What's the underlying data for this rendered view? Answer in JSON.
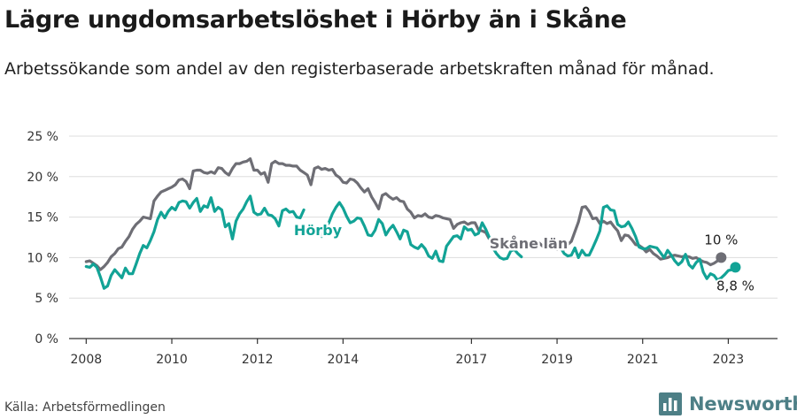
{
  "title": "Lägre ungdomsarbetslöshet i Hörby än i Skåne",
  "subtitle": "Arbetssökande som andel av den registerbaserade arbetskraften månad för månad.",
  "source": "Källa: Arbetsförmedlingen",
  "brand": "Newsworthy",
  "brand_icon": "newsworthy-logo-icon",
  "colors": {
    "horby": "#12a396",
    "skane": "#6e6e75",
    "grid": "#dddddd",
    "axis": "#333333",
    "brand": "#4d7f86"
  },
  "chart_data": {
    "type": "line",
    "x_start": "2008-01",
    "x_step": "month",
    "xlim": [
      2007.6,
      2024.15
    ],
    "ylim": [
      0,
      25
    ],
    "yticks": [
      0,
      5,
      10,
      15,
      20,
      25
    ],
    "ytick_labels": [
      "0 %",
      "5 %",
      "10 %",
      "15 %",
      "20 %",
      "25 %"
    ],
    "xticks": [
      2008,
      2010,
      2012,
      2014,
      2017,
      2019,
      2021,
      2023
    ],
    "xtick_labels": [
      "2008",
      "2010",
      "2012",
      "2014",
      "2017",
      "2019",
      "2021",
      "2023"
    ],
    "series": [
      {
        "name": "Hörby",
        "label": "Hörby",
        "end_label": "8,8 %",
        "values": [
          8.9,
          8.8,
          9.2,
          8.8,
          7.6,
          6.2,
          6.5,
          7.8,
          8.5,
          8.0,
          7.5,
          8.7,
          8.0,
          8.0,
          9.2,
          10.5,
          11.5,
          11.2,
          12.1,
          13.2,
          14.7,
          15.6,
          14.9,
          15.7,
          16.2,
          15.9,
          16.8,
          17.0,
          16.9,
          16.1,
          16.8,
          17.3,
          15.7,
          16.4,
          16.2,
          17.4,
          15.7,
          16.2,
          15.9,
          13.8,
          14.2,
          12.3,
          14.5,
          15.4,
          16.0,
          16.9,
          17.6,
          15.6,
          15.3,
          15.4,
          16.1,
          15.3,
          15.2,
          14.8,
          13.9,
          15.8,
          16.0,
          15.6,
          15.7,
          15.0,
          14.9,
          15.9,
          null,
          null,
          null,
          null,
          12.6,
          13.7,
          14.3,
          15.4,
          16.2,
          16.8,
          16.1,
          15.1,
          14.3,
          14.5,
          14.9,
          14.8,
          13.9,
          12.8,
          12.7,
          13.4,
          14.7,
          14.2,
          12.8,
          13.5,
          14.0,
          13.2,
          12.3,
          13.4,
          13.2,
          11.6,
          11.3,
          11.1,
          11.6,
          11.1,
          10.2,
          9.9,
          10.8,
          9.6,
          9.5,
          11.4,
          12.0,
          12.6,
          12.7,
          12.3,
          13.8,
          13.4,
          13.5,
          12.8,
          13.0,
          14.3,
          13.5,
          12.5,
          11.2,
          10.5,
          10.0,
          9.8,
          9.9,
          10.8,
          11.0,
          10.5,
          10.1,
          null,
          11.4,
          null,
          null,
          null,
          null,
          10.6,
          null,
          null,
          null,
          11.2,
          10.5,
          10.2,
          10.3,
          11.2,
          10.0,
          10.9,
          10.3,
          10.3,
          11.2,
          12.2,
          13.3,
          16.2,
          16.4,
          15.9,
          15.8,
          14.1,
          13.8,
          13.9,
          14.4,
          13.6,
          12.6,
          11.3,
          11.1,
          11.1,
          11.4,
          11.3,
          11.2,
          10.6,
          10.0,
          10.9,
          10.3,
          9.6,
          9.1,
          9.5,
          10.4,
          9.1,
          8.7,
          9.4,
          9.8,
          8.2,
          7.4,
          8.0,
          7.8,
          7.2,
          7.5,
          7.9,
          8.4,
          8.5,
          8.8
        ]
      },
      {
        "name": "Skåne län",
        "label": "Skåne län",
        "end_label": "10 %",
        "values": [
          9.5,
          9.6,
          9.3,
          9.0,
          8.5,
          8.9,
          9.4,
          10.1,
          10.5,
          11.1,
          11.3,
          12.0,
          12.6,
          13.5,
          14.1,
          14.5,
          15.0,
          14.9,
          14.8,
          17.0,
          17.6,
          18.1,
          18.3,
          18.5,
          18.7,
          19.0,
          19.6,
          19.7,
          19.4,
          18.5,
          20.7,
          20.8,
          20.8,
          20.5,
          20.4,
          20.6,
          20.4,
          21.1,
          21.0,
          20.5,
          20.2,
          21.0,
          21.6,
          21.6,
          21.8,
          21.9,
          22.2,
          20.8,
          20.8,
          20.3,
          20.5,
          19.3,
          21.6,
          21.9,
          21.6,
          21.6,
          21.4,
          21.4,
          21.3,
          21.3,
          20.8,
          20.5,
          20.2,
          19.0,
          21.0,
          21.2,
          20.9,
          21.0,
          20.8,
          20.9,
          20.2,
          19.9,
          19.3,
          19.2,
          19.7,
          19.6,
          19.2,
          18.6,
          18.1,
          18.5,
          17.5,
          16.8,
          16.0,
          17.7,
          17.9,
          17.5,
          17.2,
          17.4,
          17.0,
          16.9,
          16.0,
          15.6,
          14.9,
          15.2,
          15.1,
          15.4,
          15.0,
          14.9,
          15.2,
          15.1,
          14.9,
          14.8,
          14.7,
          13.6,
          14.1,
          14.3,
          14.4,
          14.1,
          14.3,
          14.3,
          13.4,
          13.3,
          13.1,
          12.3,
          12.0,
          11.5,
          null,
          null,
          null,
          null,
          null,
          null,
          null,
          null,
          null,
          null,
          11.3,
          11.8,
          11.4,
          11.9,
          11.2,
          11.2,
          11.0,
          11.5,
          11.0,
          11.6,
          12.0,
          13.2,
          14.4,
          16.2,
          16.3,
          15.7,
          14.8,
          14.9,
          14.2,
          14.5,
          14.2,
          14.4,
          13.8,
          13.3,
          12.1,
          12.8,
          12.7,
          12.2,
          11.6,
          11.5,
          11.2,
          10.7,
          11.0,
          10.5,
          10.2,
          9.8,
          9.9,
          10.0,
          10.2,
          10.3,
          10.2,
          10.1,
          10.2,
          10.1,
          9.9,
          10.0,
          9.7,
          9.5,
          9.4,
          9.1,
          9.3,
          9.6,
          10.0
        ]
      }
    ]
  }
}
